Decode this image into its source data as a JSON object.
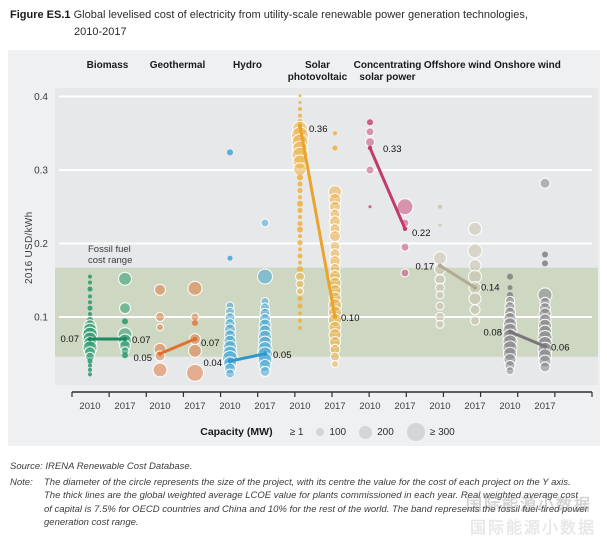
{
  "title": {
    "label": "Figure ES.1",
    "line1": "Global levelised cost of electricity from utility-scale renewable power generation technologies,",
    "line2": "2010-2017"
  },
  "chart_data": {
    "type": "scatter",
    "title": "Global levelised cost of electricity from utility-scale renewable power generation technologies, 2010-2017",
    "ylabel": "2016 USD/kWh",
    "ylim": [
      0,
      0.43
    ],
    "yticks": [
      0.1,
      0.2,
      0.3,
      0.4
    ],
    "x_years": [
      "2010",
      "2017"
    ],
    "grid": "horizontal white gridlines at each y tick",
    "legend_position": "bottom center",
    "fossil_band": {
      "label_line1": "Fossil fuel",
      "label_line2": "cost range",
      "low": 0.046,
      "high": 0.167
    },
    "legend": {
      "title": "Capacity (MW)",
      "items": [
        {
          "label": "≥ 1",
          "r": 1.5
        },
        {
          "label": "100",
          "r": 4
        },
        {
          "label": "200",
          "r": 6.5
        },
        {
          "label": "≥ 300",
          "r": 9
        }
      ]
    },
    "series": [
      {
        "name": "Biomass",
        "color": "#27996d",
        "line_color": "#1b8a62",
        "avg": {
          "v2010": 0.07,
          "v2017": 0.07,
          "l2010": "0.07",
          "l2017": "0.07",
          "s2010": "left",
          "s2017": "right",
          "o2010": [
            -11,
            3
          ],
          "o2017": [
            7,
            4
          ]
        },
        "points_2010": [
          [
            0.155,
            2
          ],
          [
            0.147,
            2
          ],
          [
            0.138,
            2.5
          ],
          [
            0.128,
            2
          ],
          [
            0.12,
            2
          ],
          [
            0.112,
            2.5
          ],
          [
            0.104,
            2
          ],
          [
            0.096,
            3
          ],
          [
            0.088,
            6
          ],
          [
            0.082,
            7
          ],
          [
            0.076,
            7.5
          ],
          [
            0.07,
            7
          ],
          [
            0.064,
            6.5
          ],
          [
            0.058,
            7
          ],
          [
            0.052,
            5.5
          ],
          [
            0.046,
            4.5
          ],
          [
            0.04,
            2.5
          ],
          [
            0.034,
            2
          ],
          [
            0.028,
            2
          ],
          [
            0.022,
            2
          ]
        ],
        "points_2017": [
          [
            0.152,
            6.5
          ],
          [
            0.112,
            5.5
          ],
          [
            0.094,
            3
          ],
          [
            0.076,
            7
          ],
          [
            0.068,
            6.5
          ],
          [
            0.061,
            5.5
          ],
          [
            0.054,
            4
          ],
          [
            0.048,
            3
          ]
        ]
      },
      {
        "name": "Geothermal",
        "color": "#e4763b",
        "line_color": "#e0702f",
        "avg": {
          "v2010": 0.05,
          "v2017": 0.07,
          "l2010": "0.05",
          "l2017": "0.07",
          "s2010": "left",
          "s2017": "right",
          "o2010": [
            -8,
            7
          ],
          "o2017": [
            6,
            7
          ]
        },
        "points_2010": [
          [
            0.137,
            5.5
          ],
          [
            0.1,
            4.5
          ],
          [
            0.086,
            3.5
          ],
          [
            0.056,
            6
          ],
          [
            0.047,
            5
          ],
          [
            0.028,
            7
          ]
        ],
        "points_2017": [
          [
            0.139,
            7
          ],
          [
            0.1,
            4
          ],
          [
            0.092,
            3
          ],
          [
            0.07,
            5.5
          ],
          [
            0.054,
            6.5
          ],
          [
            0.024,
            8.5
          ]
        ]
      },
      {
        "name": "Hydro",
        "color": "#41a5d5",
        "line_color": "#2f97cd",
        "avg": {
          "v2010": 0.04,
          "v2017": 0.05,
          "l2010": "0.04",
          "l2017": "0.05",
          "s2010": "left",
          "s2017": "right",
          "o2010": [
            -8,
            5
          ],
          "o2017": [
            8,
            4
          ]
        },
        "points_2010": [
          [
            0.324,
            3
          ],
          [
            0.18,
            2.5
          ],
          [
            0.115,
            4
          ],
          [
            0.107,
            4.5
          ],
          [
            0.099,
            5
          ],
          [
            0.091,
            5
          ],
          [
            0.083,
            5.5
          ],
          [
            0.075,
            5.5
          ],
          [
            0.067,
            6
          ],
          [
            0.059,
            6.5
          ],
          [
            0.051,
            7
          ],
          [
            0.044,
            7.5
          ],
          [
            0.037,
            6.5
          ],
          [
            0.03,
            5.5
          ],
          [
            0.023,
            4.5
          ]
        ],
        "points_2017": [
          [
            0.228,
            4
          ],
          [
            0.155,
            7.5
          ],
          [
            0.121,
            4
          ],
          [
            0.113,
            4.5
          ],
          [
            0.105,
            5
          ],
          [
            0.097,
            5.5
          ],
          [
            0.089,
            6
          ],
          [
            0.081,
            6
          ],
          [
            0.073,
            6.5
          ],
          [
            0.065,
            6.5
          ],
          [
            0.057,
            7
          ],
          [
            0.049,
            7.5
          ],
          [
            0.042,
            7
          ],
          [
            0.034,
            6
          ],
          [
            0.026,
            5
          ]
        ]
      },
      {
        "name": "Solar photovoltaic",
        "color": "#f0af3c",
        "line_color": "#eaa42c",
        "avg": {
          "v2010": 0.36,
          "v2017": 0.1,
          "l2010": "0.36",
          "l2017": "0.10",
          "s2010": "right",
          "s2017": "right",
          "o2010": [
            9,
            6
          ],
          "o2017": [
            6,
            4
          ]
        },
        "points_2010": [
          [
            0.401,
            1.5
          ],
          [
            0.392,
            1.5
          ],
          [
            0.383,
            2
          ],
          [
            0.374,
            2
          ],
          [
            0.366,
            2.5
          ],
          [
            0.356,
            7.5
          ],
          [
            0.347,
            8.5
          ],
          [
            0.338,
            8
          ],
          [
            0.329,
            7.5
          ],
          [
            0.32,
            8
          ],
          [
            0.311,
            7
          ],
          [
            0.301,
            6.5
          ],
          [
            0.29,
            3
          ],
          [
            0.281,
            2.5
          ],
          [
            0.272,
            2.5
          ],
          [
            0.263,
            2
          ],
          [
            0.254,
            3
          ],
          [
            0.245,
            2.5
          ],
          [
            0.236,
            2
          ],
          [
            0.227,
            2.5
          ],
          [
            0.219,
            3
          ],
          [
            0.21,
            2
          ],
          [
            0.201,
            2.5
          ],
          [
            0.192,
            2
          ],
          [
            0.183,
            2.5
          ],
          [
            0.174,
            2
          ],
          [
            0.165,
            3
          ],
          [
            0.155,
            4.5
          ],
          [
            0.145,
            4
          ],
          [
            0.135,
            3.5
          ],
          [
            0.125,
            2.5
          ],
          [
            0.115,
            2.5
          ],
          [
            0.105,
            2
          ],
          [
            0.095,
            2
          ],
          [
            0.085,
            2
          ]
        ],
        "points_2017": [
          [
            0.35,
            2
          ],
          [
            0.33,
            2.5
          ],
          [
            0.27,
            6.5
          ],
          [
            0.26,
            6
          ],
          [
            0.25,
            5.5
          ],
          [
            0.24,
            5
          ],
          [
            0.23,
            5.5
          ],
          [
            0.22,
            5
          ],
          [
            0.21,
            5.5
          ],
          [
            0.196,
            5
          ],
          [
            0.186,
            5
          ],
          [
            0.176,
            5.5
          ],
          [
            0.166,
            5
          ],
          [
            0.156,
            5.5
          ],
          [
            0.146,
            6
          ],
          [
            0.136,
            6
          ],
          [
            0.126,
            6
          ],
          [
            0.116,
            6.5
          ],
          [
            0.106,
            6.5
          ],
          [
            0.096,
            6.5
          ],
          [
            0.086,
            6
          ],
          [
            0.076,
            6
          ],
          [
            0.066,
            5.5
          ],
          [
            0.056,
            5
          ],
          [
            0.046,
            4.5
          ],
          [
            0.036,
            3.5
          ]
        ]
      },
      {
        "name": "Concentrating solar power",
        "color": "#c64576",
        "line_color": "#c23a69",
        "avg": {
          "v2010": 0.33,
          "v2017": 0.22,
          "l2010": "0.33",
          "l2017": "0.22",
          "s2010": "right",
          "s2017": "right",
          "o2010": [
            13,
            4
          ],
          "o2017": [
            7,
            7
          ]
        },
        "points_2010": [
          [
            0.365,
            3
          ],
          [
            0.352,
            4
          ],
          [
            0.338,
            4.5
          ],
          [
            0.3,
            4
          ],
          [
            0.25,
            1.5
          ]
        ],
        "points_2017": [
          [
            0.25,
            8
          ],
          [
            0.228,
            4
          ],
          [
            0.195,
            4
          ],
          [
            0.16,
            4
          ]
        ]
      },
      {
        "name": "Offshore wind",
        "color": "#c9c2ac",
        "line_color": "#b3ab92",
        "avg": {
          "v2010": 0.17,
          "v2017": 0.14,
          "l2010": "0.17",
          "l2017": "0.14",
          "s2010": "left",
          "s2017": "right",
          "o2010": [
            -6,
            4
          ],
          "o2017": [
            6,
            3
          ]
        },
        "points_2010": [
          [
            0.25,
            2
          ],
          [
            0.225,
            1.5
          ],
          [
            0.18,
            6.5
          ],
          [
            0.165,
            5.5
          ],
          [
            0.151,
            5
          ],
          [
            0.14,
            4.5
          ],
          [
            0.13,
            4
          ],
          [
            0.115,
            4
          ],
          [
            0.1,
            4.5
          ],
          [
            0.09,
            4
          ]
        ],
        "points_2017": [
          [
            0.22,
            6.5
          ],
          [
            0.19,
            7
          ],
          [
            0.17,
            6
          ],
          [
            0.155,
            6.5
          ],
          [
            0.14,
            6
          ],
          [
            0.125,
            6
          ],
          [
            0.11,
            5
          ],
          [
            0.095,
            4.5
          ]
        ]
      },
      {
        "name": "Onshore wind",
        "color": "#7f7f82",
        "line_color": "#77777a",
        "avg": {
          "v2010": 0.08,
          "v2017": 0.06,
          "l2010": "0.08",
          "l2017": "0.06",
          "s2010": "left",
          "s2017": "right",
          "o2010": [
            -8,
            4
          ],
          "o2017": [
            6,
            4
          ]
        },
        "points_2010": [
          [
            0.155,
            3
          ],
          [
            0.14,
            2.5
          ],
          [
            0.13,
            3
          ],
          [
            0.122,
            4.5
          ],
          [
            0.114,
            5
          ],
          [
            0.106,
            5.5
          ],
          [
            0.098,
            6
          ],
          [
            0.09,
            6.5
          ],
          [
            0.082,
            7
          ],
          [
            0.074,
            7
          ],
          [
            0.066,
            7
          ],
          [
            0.058,
            7
          ],
          [
            0.05,
            6.5
          ],
          [
            0.042,
            6
          ],
          [
            0.034,
            5
          ],
          [
            0.027,
            4
          ]
        ],
        "points_2017": [
          [
            0.282,
            5
          ],
          [
            0.185,
            3
          ],
          [
            0.173,
            3
          ],
          [
            0.13,
            7
          ],
          [
            0.12,
            5
          ],
          [
            0.112,
            5.5
          ],
          [
            0.104,
            6
          ],
          [
            0.096,
            6
          ],
          [
            0.088,
            6.5
          ],
          [
            0.08,
            6.5
          ],
          [
            0.072,
            7
          ],
          [
            0.064,
            7
          ],
          [
            0.056,
            7
          ],
          [
            0.048,
            6.5
          ],
          [
            0.04,
            6
          ],
          [
            0.032,
            5
          ]
        ]
      }
    ]
  },
  "footer": {
    "source": "Source: IRENA Renewable Cost Database.",
    "note_prefix": "Note:",
    "note_lines": [
      "The diameter of the circle represents the size of the project, with its centre the value for the cost of each project on the Y axis.",
      "The thick lines are the global weighted average LCOE value for plants commissioned in each year. Real weighted average cost",
      "of capital is 7.5% for OECD countries and China and 10% for the rest of the world. The band represents the fossil fuel-fired power",
      "generation cost range."
    ]
  },
  "watermark": "国际能源小数据"
}
